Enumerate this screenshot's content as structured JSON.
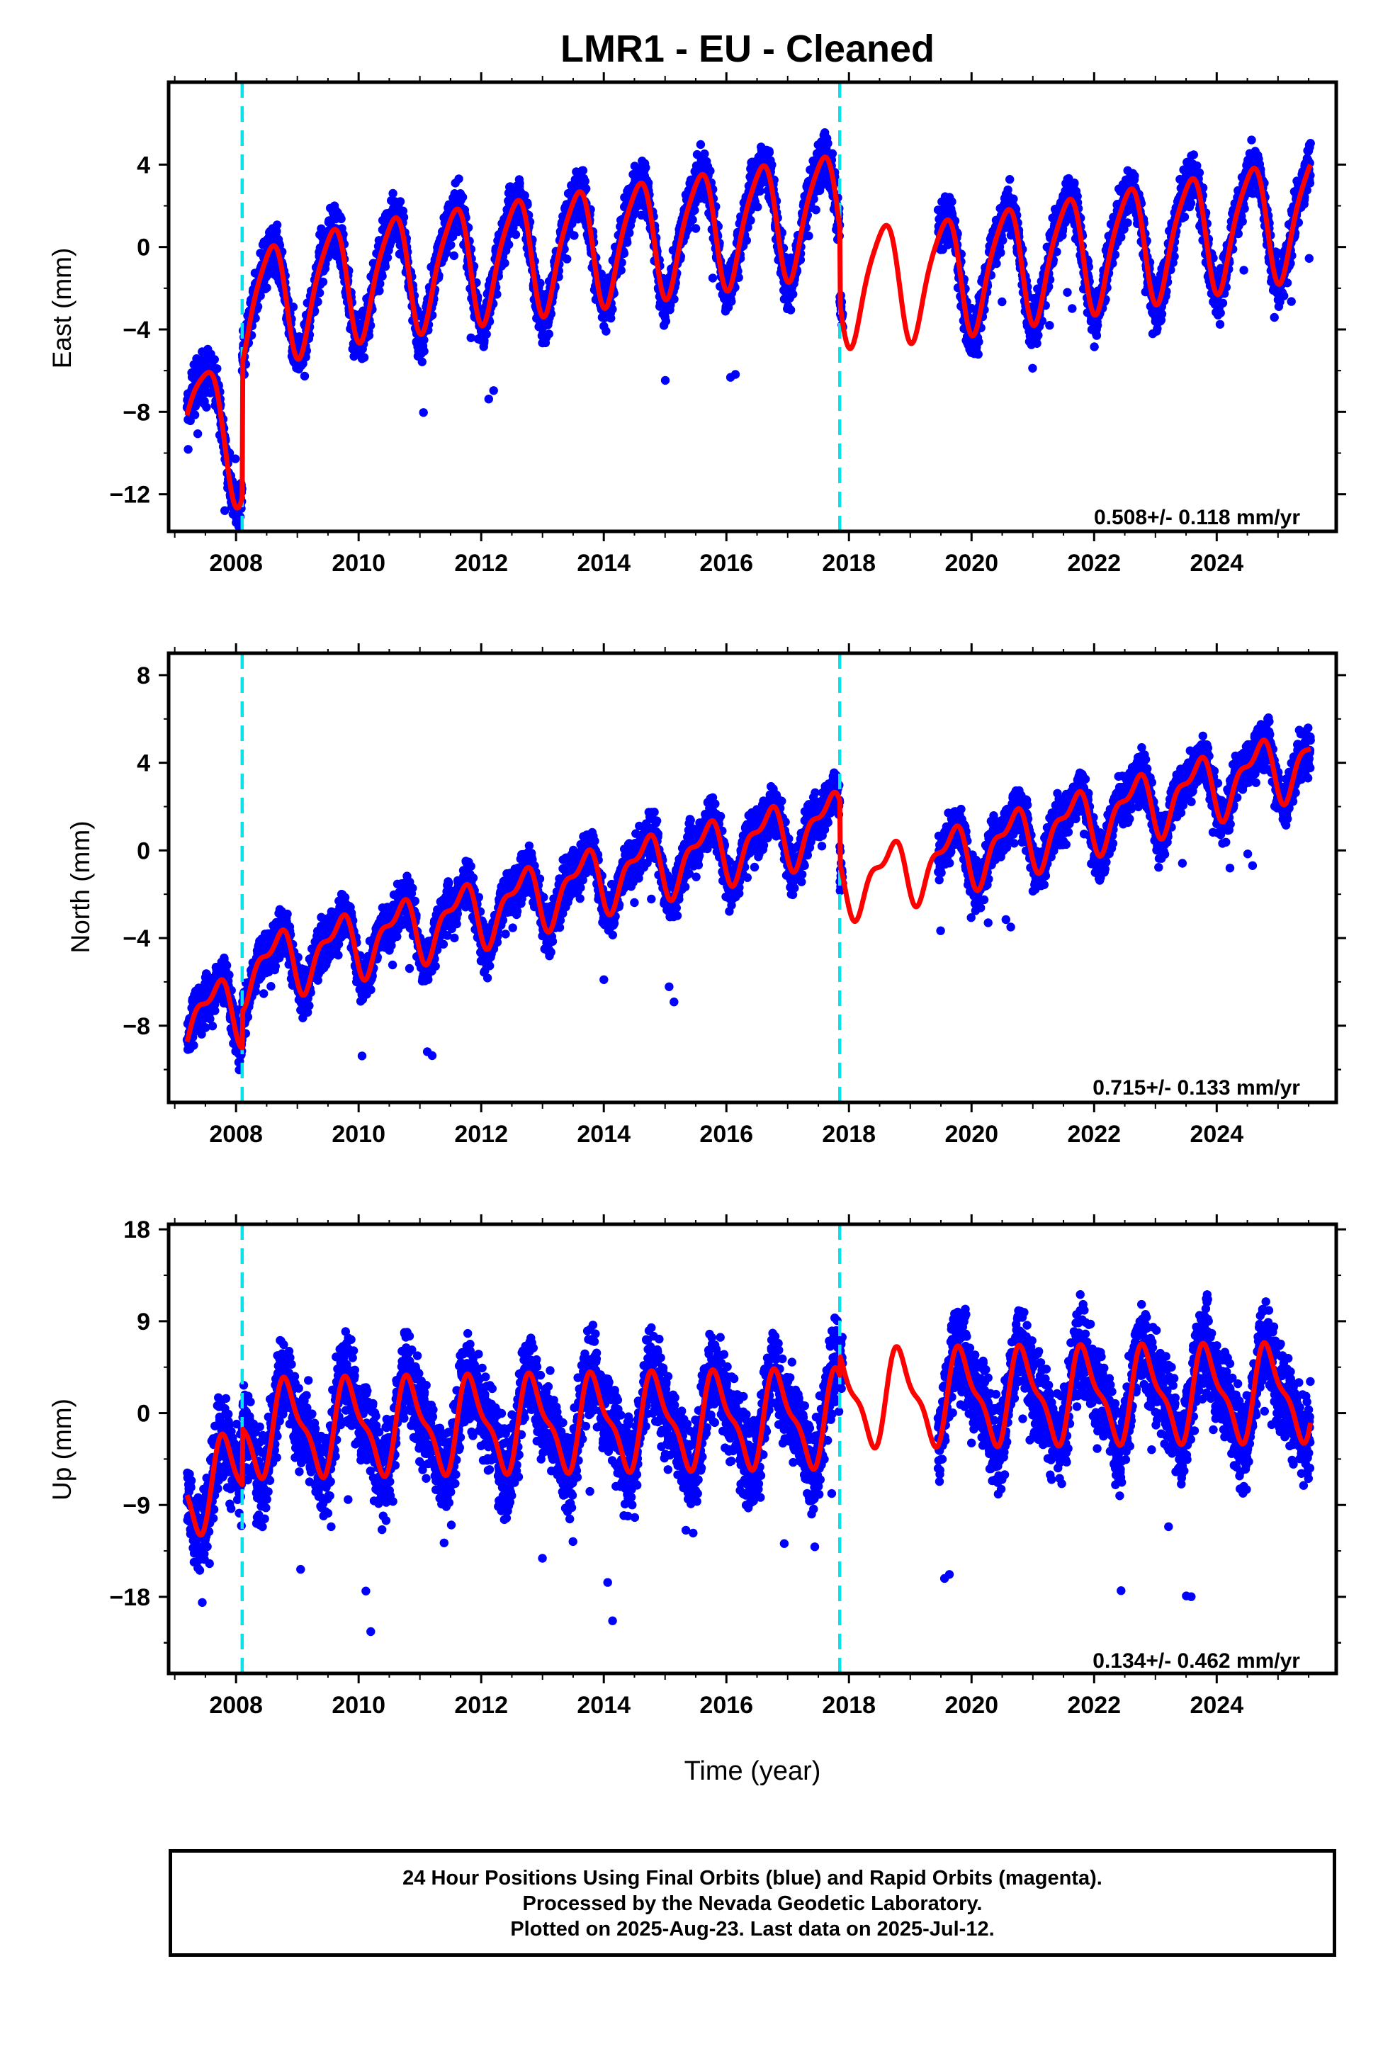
{
  "title": "LMR1  - EU - Cleaned",
  "footer": {
    "line1": "24 Hour Positions Using Final Orbits (blue) and Rapid Orbits (magenta).",
    "line2": "Processed by the Nevada Geodetic Laboratory.",
    "line3": "Plotted on 2025-Aug-23. Last data on 2025-Jul-12."
  },
  "colors": {
    "points": "#0000ff",
    "model": "#ff0000",
    "breaks": "#00e5ee"
  },
  "chart_data": [
    {
      "type": "scatter",
      "component": "east",
      "ylabel": "East (mm)",
      "xlabel": "",
      "xlim": [
        2006.9,
        2025.95
      ],
      "ylim": [
        -13.8,
        8.0
      ],
      "yticks": [
        -12,
        -8,
        -4,
        0,
        4
      ],
      "xticks": [
        2008,
        2010,
        2012,
        2014,
        2016,
        2018,
        2020,
        2022,
        2024
      ],
      "rate_label": "0.508+/- 0.118 mm/yr",
      "breaks": [
        2008.1,
        2017.85
      ],
      "data_range": [
        2007.2,
        2025.53
      ],
      "data_gap": [
        2017.9,
        2019.45
      ],
      "noise_sd": 1.1,
      "model": {
        "breakpoints": [
          [
            2007.2,
            -7.0
          ],
          [
            2007.75,
            -9.5
          ],
          [
            2008.1,
            -9.5
          ],
          [
            2008.1,
            -3.0
          ],
          [
            2010.0,
            -1.5
          ],
          [
            2017.85,
            1.8
          ],
          [
            2017.85,
            -1.8
          ],
          [
            2019.5,
            -1.4
          ],
          [
            2025.5,
            1.6
          ]
        ],
        "annual_amp": 2.8,
        "annual_phase": 0.3,
        "semi_amp": 0.5,
        "semi_phase": 0.1
      }
    },
    {
      "type": "scatter",
      "component": "north",
      "ylabel": "North (mm)",
      "xlabel": "",
      "xlim": [
        2006.9,
        2025.95
      ],
      "ylim": [
        -11.5,
        9.0
      ],
      "yticks": [
        -8,
        -4,
        0,
        4,
        8
      ],
      "xticks": [
        2008,
        2010,
        2012,
        2014,
        2016,
        2018,
        2020,
        2022,
        2024
      ],
      "rate_label": "0.715+/- 0.133 mm/yr",
      "breaks": [
        2008.1,
        2017.85
      ],
      "data_range": [
        2007.2,
        2025.53
      ],
      "data_gap": [
        2017.9,
        2019.45
      ],
      "noise_sd": 1.0,
      "model": {
        "breakpoints": [
          [
            2007.2,
            -7.5
          ],
          [
            2008.1,
            -7.2
          ],
          [
            2008.1,
            -5.5
          ],
          [
            2012.0,
            -2.8
          ],
          [
            2014.0,
            -1.2
          ],
          [
            2017.85,
            1.3
          ],
          [
            2017.85,
            -1.6
          ],
          [
            2019.5,
            -0.5
          ],
          [
            2025.5,
            4.2
          ]
        ],
        "annual_amp": 1.3,
        "annual_phase": 0.4,
        "semi_amp": 0.6,
        "semi_phase": 0.2
      }
    },
    {
      "type": "scatter",
      "component": "up",
      "ylabel": "Up (mm)",
      "xlabel": "Time (year)",
      "xlim": [
        2006.9,
        2025.95
      ],
      "ylim": [
        -25.5,
        18.5
      ],
      "yticks": [
        -18,
        -9,
        0,
        9,
        18
      ],
      "xticks": [
        2008,
        2010,
        2012,
        2014,
        2016,
        2018,
        2020,
        2022,
        2024
      ],
      "rate_label": "0.134+/- 0.462 mm/yr",
      "breaks": [
        2008.1,
        2017.85
      ],
      "data_range": [
        2007.2,
        2025.53
      ],
      "data_gap": [
        2017.9,
        2019.45
      ],
      "noise_sd": 4.0,
      "model": {
        "breakpoints": [
          [
            2007.2,
            -7.0
          ],
          [
            2008.1,
            -7.0
          ],
          [
            2008.1,
            -1.5
          ],
          [
            2017.85,
            -0.5
          ],
          [
            2017.85,
            1.5
          ],
          [
            2025.5,
            2.0
          ]
        ],
        "annual_amp": 4.2,
        "annual_phase": 0.6,
        "semi_amp": 1.5,
        "semi_phase": 0.6
      }
    }
  ]
}
